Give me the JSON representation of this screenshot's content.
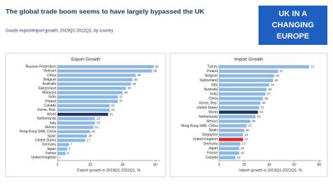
{
  "header": {
    "title": "The global trade boom seems to have largely bypassed the UK",
    "subtitle": "Goods export/import growth, 2019Q1-2022Q1, by country",
    "logo": [
      "UK IN A",
      "CHANGING",
      "EUROPE"
    ]
  },
  "chart_data": [
    {
      "type": "barh",
      "title": "Export Growth",
      "x_label": "Export growth in 2019Q1-2022Q1, %",
      "categories": [
        "Russian Federation",
        "Vietnam",
        "China",
        "Belgium",
        "Australia",
        "Switzerland",
        "Malaysia",
        "India",
        "Poland",
        "Canada",
        "Korea, Rep.",
        "World",
        "Netherlands",
        "Italy",
        "Mexico",
        "Hong Kong SAR, China",
        "Spain",
        "United States",
        "Germany",
        "Japan",
        "France",
        "United Kingdom"
      ],
      "values": [
        59,
        58,
        48,
        46,
        45,
        42,
        40,
        37,
        37,
        32,
        32,
        31,
        23,
        23,
        22,
        20,
        18,
        17,
        7,
        6,
        5,
        0
      ],
      "colors": [
        "#8db8e2",
        "#8db8e2",
        "#8db8e2",
        "#8db8e2",
        "#8db8e2",
        "#8db8e2",
        "#8db8e2",
        "#8db8e2",
        "#8db8e2",
        "#8db8e2",
        "#8db8e2",
        "#1f3864",
        "#8db8e2",
        "#8db8e2",
        "#8db8e2",
        "#8db8e2",
        "#8db8e2",
        "#8db8e2",
        "#8db8e2",
        "#8db8e2",
        "#8db8e2",
        "#e3262a"
      ],
      "xlim": [
        0,
        63
      ],
      "xticks": [
        0,
        20,
        40,
        60
      ]
    },
    {
      "type": "barh",
      "title": "Import Growth",
      "x_label": "Import growth in 2019Q1-2022Q1, %",
      "categories": [
        "Turkey",
        "Poland",
        "Belgium",
        "Switzerland",
        "Italy",
        "Australia",
        "India",
        "China",
        "Korea, Rep.",
        "United States",
        "World",
        "Netherlands",
        "Mexico",
        "Hong Kong SAR, China",
        "Spain",
        "Singapore",
        "United Kingdom",
        "Germany",
        "Japan",
        "France",
        "Canada"
      ],
      "values": [
        72,
        47,
        44,
        43,
        40,
        38,
        37,
        35,
        33,
        32,
        31,
        29,
        25,
        22,
        20,
        19,
        19,
        17,
        16,
        16,
        13
      ],
      "colors": [
        "#8db8e2",
        "#8db8e2",
        "#8db8e2",
        "#8db8e2",
        "#8db8e2",
        "#8db8e2",
        "#8db8e2",
        "#8db8e2",
        "#8db8e2",
        "#8db8e2",
        "#1f3864",
        "#8db8e2",
        "#8db8e2",
        "#8db8e2",
        "#8db8e2",
        "#8db8e2",
        "#e3262a",
        "#8db8e2",
        "#8db8e2",
        "#8db8e2",
        "#8db8e2"
      ],
      "xlim": [
        0,
        82
      ],
      "xticks": [
        0,
        20,
        40,
        60,
        80
      ]
    }
  ]
}
